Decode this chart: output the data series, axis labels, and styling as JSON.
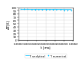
{
  "title": "",
  "xlabel": "t (ms)",
  "ylabel": "ΔT(K)",
  "xlim": [
    0.0,
    0.006
  ],
  "ylim": [
    0,
    100
  ],
  "yticks": [
    0,
    10,
    20,
    30,
    40,
    50,
    60,
    70,
    80,
    90,
    100
  ],
  "xticks": [
    0.0,
    0.001,
    0.002,
    0.003,
    0.004,
    0.005,
    0.006
  ],
  "xtick_labels": [
    "0.0000",
    "0.0010",
    "0.0020",
    "0.0030",
    "0.0040",
    "0.0050",
    "0.0060"
  ],
  "analytical_x": [
    0.0002,
    0.0004,
    0.0006,
    0.0008,
    0.001,
    0.0012,
    0.0014,
    0.0016,
    0.0018,
    0.002,
    0.0022,
    0.0024,
    0.0026,
    0.0028,
    0.003,
    0.0032,
    0.0034,
    0.0036,
    0.0038,
    0.004,
    0.0042,
    0.0044,
    0.0046,
    0.0048,
    0.005,
    0.0052,
    0.0054,
    0.0056,
    0.0058
  ],
  "analytical_y": [
    94,
    94,
    94,
    94,
    94,
    94,
    94,
    94,
    94,
    94,
    94,
    94,
    94,
    94,
    94,
    94,
    94,
    94,
    94,
    94,
    94,
    94,
    94,
    94,
    94,
    94,
    94,
    94,
    94
  ],
  "numerical_x": [
    0.0002,
    0.0006,
    0.001,
    0.0014,
    0.0018,
    0.0022,
    0.0026,
    0.003,
    0.0034,
    0.0038,
    0.0042,
    0.0046,
    0.005,
    0.0054,
    0.0058
  ],
  "numerical_y": [
    94,
    94,
    94,
    93,
    93,
    93,
    93,
    93,
    92,
    92,
    92,
    92,
    91,
    91,
    90
  ],
  "line_color": "#00bfff",
  "marker_color": "#00bfff",
  "legend_analytical": "T analytical",
  "legend_numerical": "T numerical",
  "grid_color": "#d3d3d3",
  "background_color": "#ffffff",
  "label_fontsize": 3.5,
  "tick_fontsize": 2.8,
  "legend_fontsize": 2.8
}
